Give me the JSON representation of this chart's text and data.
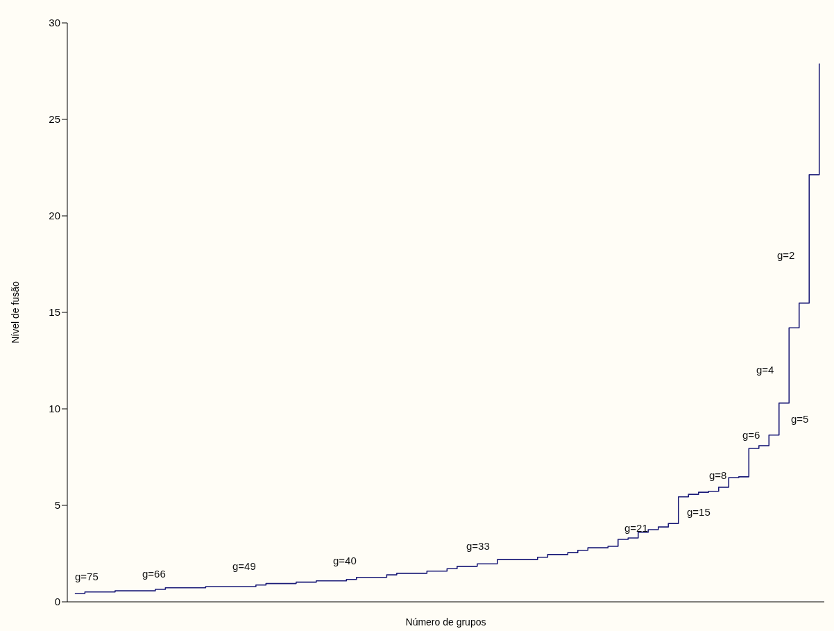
{
  "chart_data": {
    "type": "step",
    "xlabel": "Número de grupos",
    "ylabel": "Nível de fusão",
    "categories": [
      null,
      null,
      null,
      null,
      null,
      null,
      null,
      null,
      null,
      null,
      null,
      null,
      null,
      null,
      null,
      null,
      null,
      null,
      null,
      null,
      null,
      null,
      null,
      null,
      null,
      null,
      null,
      null,
      null,
      null,
      null,
      null,
      null,
      null,
      null,
      null,
      null,
      null,
      null,
      null,
      null,
      null,
      null,
      null,
      null,
      null,
      null,
      null,
      null,
      null,
      null,
      null,
      null,
      null,
      null,
      null,
      null,
      null,
      null,
      null,
      null,
      null,
      null,
      null,
      null,
      null,
      null,
      null,
      null,
      null,
      null,
      null,
      null,
      null,
      null
    ],
    "series": [
      {
        "color": "#1c1c78",
        "values": [
          0.43,
          0.51,
          0.51,
          0.51,
          0.57,
          0.57,
          0.57,
          0.57,
          0.65,
          0.73,
          0.73,
          0.73,
          0.73,
          0.79,
          0.79,
          0.79,
          0.79,
          0.79,
          0.87,
          0.95,
          0.95,
          0.95,
          1.02,
          1.02,
          1.09,
          1.09,
          1.09,
          1.16,
          1.27,
          1.27,
          1.27,
          1.4,
          1.48,
          1.48,
          1.48,
          1.59,
          1.59,
          1.72,
          1.84,
          1.84,
          1.97,
          1.97,
          2.19,
          2.19,
          2.19,
          2.19,
          2.31,
          2.45,
          2.45,
          2.55,
          2.67,
          2.8,
          2.8,
          2.88,
          3.24,
          3.31,
          3.61,
          3.74,
          3.88,
          4.06,
          5.44,
          5.57,
          5.68,
          5.73,
          5.94,
          6.44,
          6.48,
          7.95,
          8.09,
          8.64,
          10.3,
          14.2,
          15.48,
          22.13,
          27.9
        ]
      }
    ],
    "ylim": [
      0,
      30
    ],
    "yticks": [
      0,
      5,
      10,
      15,
      20,
      25,
      30
    ],
    "grid": false,
    "legend": false,
    "tick_labels": "y",
    "marker": "none",
    "line_style": "solid",
    "annotations": [
      "g=75",
      "g=66",
      "g=49",
      "g=40",
      "g=33",
      "g=21",
      "g=15",
      "g=8",
      "g=6",
      "g=5",
      "g=4",
      "g=2"
    ]
  }
}
